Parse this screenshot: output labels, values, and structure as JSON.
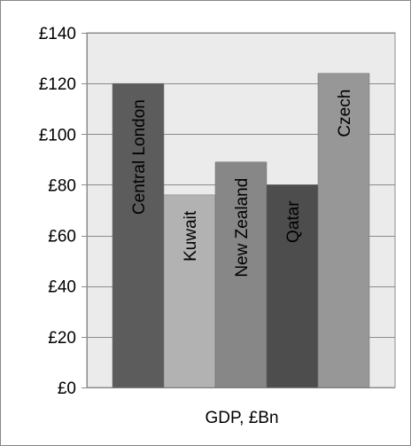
{
  "chart_data": {
    "type": "bar",
    "title": "",
    "xlabel": "GDP, £Bn",
    "ylabel": "",
    "ylim": [
      0,
      140
    ],
    "ytick_values": [
      0,
      20,
      40,
      60,
      80,
      100,
      120,
      140
    ],
    "ytick_labels": [
      "£0",
      "£20",
      "£40",
      "£60",
      "£80",
      "£100",
      "£120",
      "£140"
    ],
    "categories": [
      "Central London",
      "Kuwait",
      "New Zealand",
      "Qatar",
      "Czech"
    ],
    "values": [
      120,
      76,
      89,
      80,
      124
    ],
    "colors": [
      "#5c5c5c",
      "#b2b2b2",
      "#878787",
      "#4d4d4d",
      "#979797"
    ],
    "grid": true,
    "legend": "none",
    "plot_background": "#ebebeb",
    "gridline_color": "#8c8c8c"
  }
}
